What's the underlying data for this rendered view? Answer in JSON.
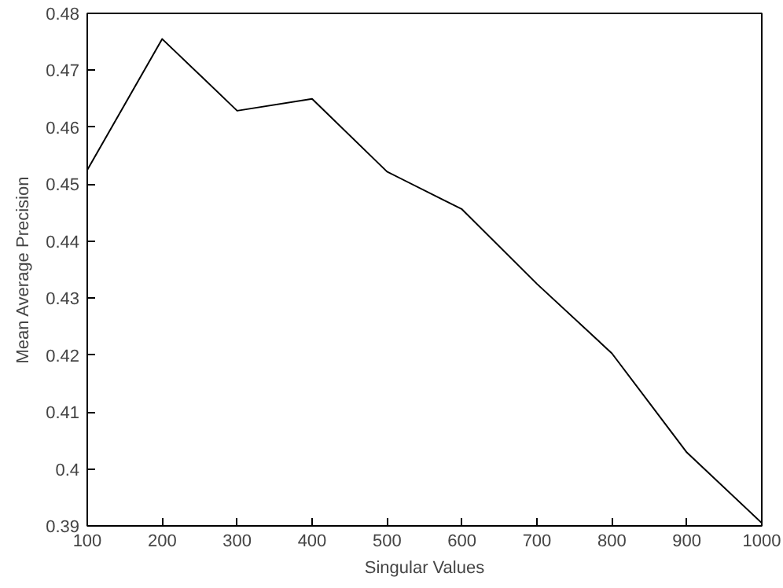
{
  "chart_data": {
    "type": "line",
    "xlabel": "Singular Values",
    "ylabel": "Mean Average Precision",
    "x": [
      100,
      200,
      300,
      400,
      500,
      600,
      700,
      800,
      900,
      1000
    ],
    "series": [
      {
        "color": "#000000",
        "values": [
          0.4525,
          0.4755,
          0.4629,
          0.465,
          0.4522,
          0.4456,
          0.4325,
          0.4203,
          0.4029,
          0.3905
        ]
      }
    ],
    "xlim": [
      100,
      1000
    ],
    "ylim": [
      0.39,
      0.48
    ],
    "xticks": [
      100,
      200,
      300,
      400,
      500,
      600,
      700,
      800,
      900,
      1000
    ],
    "yticks": [
      0.39,
      0.4,
      0.41,
      0.42,
      0.43,
      0.44,
      0.45,
      0.46,
      0.47,
      0.48
    ],
    "grid": false,
    "marker": "none",
    "line_style": "solid"
  }
}
